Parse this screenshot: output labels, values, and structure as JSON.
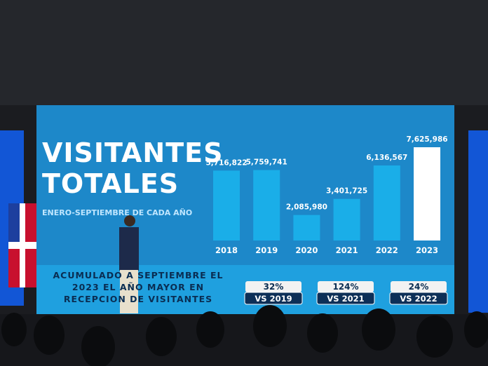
{
  "chart_data": {
    "type": "bar",
    "title": "VISITANTES TOTALES",
    "subtitle": "ENERO-SEPTIEMBRE DE CADA AÑO",
    "categories": [
      "2018",
      "2019",
      "2020",
      "2021",
      "2022",
      "2023"
    ],
    "values": [
      5716822,
      5759741,
      2085980,
      3401725,
      6136567,
      7625986
    ],
    "value_labels": [
      "5,716,822",
      "5,759,741",
      "2,085,980",
      "3,401,725",
      "6,136,567",
      "7,625,986"
    ],
    "colors": [
      "#1aaee8",
      "#1aaee8",
      "#1aaee8",
      "#1aaee8",
      "#1aaee8",
      "#ffffff"
    ],
    "footnote": "ACUMULADO A SEPTIEMBRE EL 2023 EL AÑO MAYOR EN RECEPCION DE VISITANTES",
    "comparisons": [
      {
        "value": 32,
        "label": "32%",
        "versus": "VS 2019"
      },
      {
        "value": 124,
        "label": "124%",
        "versus": "VS 2021"
      },
      {
        "value": 24,
        "label": "24%",
        "versus": "VS 2022"
      }
    ]
  }
}
